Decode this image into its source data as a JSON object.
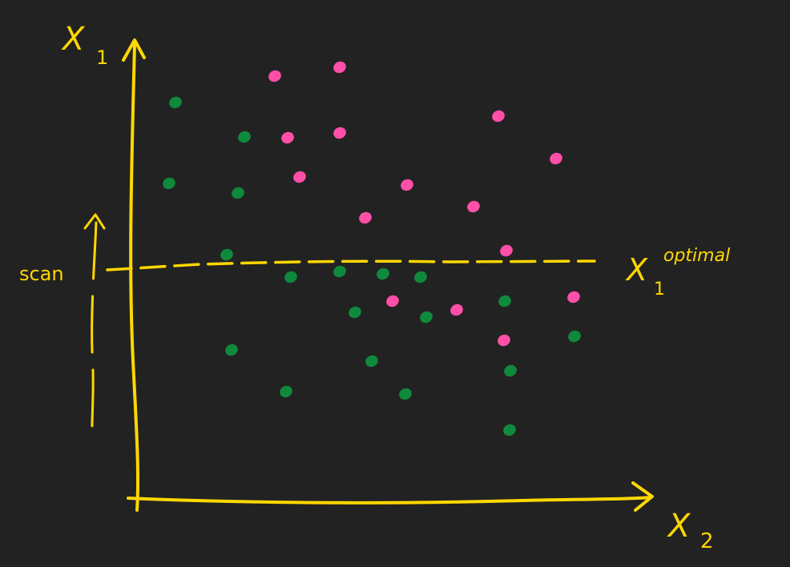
{
  "colors": {
    "background": "#222222",
    "ink": "#ffd700",
    "class_a": "#ff4fa8",
    "class_b": "#0f8a3c"
  },
  "labels": {
    "y_axis": "X",
    "y_axis_sub": "1",
    "x_axis": "X",
    "x_axis_sub": "2",
    "split_line": "X",
    "split_line_sub": "1",
    "split_line_sup": "optimal",
    "scan": "scan"
  },
  "chart_data": {
    "type": "scatter",
    "threshold_y": 330,
    "series": [
      {
        "color": "#ff4fa8",
        "points": [
          [
            343,
            95
          ],
          [
            424,
            84
          ],
          [
            359,
            172
          ],
          [
            424,
            166
          ],
          [
            374,
            221
          ],
          [
            622,
            145
          ],
          [
            694,
            198
          ],
          [
            508,
            231
          ],
          [
            591,
            258
          ],
          [
            456,
            272
          ],
          [
            632,
            313
          ],
          [
            490,
            376
          ],
          [
            570,
            387
          ],
          [
            716,
            371
          ],
          [
            629,
            425
          ]
        ]
      },
      {
        "color": "#0f8a3c",
        "points": [
          [
            219,
            128
          ],
          [
            305,
            171
          ],
          [
            211,
            229
          ],
          [
            297,
            241
          ],
          [
            283,
            318
          ],
          [
            363,
            346
          ],
          [
            424,
            339
          ],
          [
            478,
            342
          ],
          [
            525,
            346
          ],
          [
            443,
            390
          ],
          [
            532,
            396
          ],
          [
            630,
            376
          ],
          [
            717,
            420
          ],
          [
            289,
            437
          ],
          [
            464,
            451
          ],
          [
            637,
            463
          ],
          [
            357,
            489
          ],
          [
            506,
            492
          ],
          [
            636,
            537
          ]
        ]
      }
    ]
  }
}
